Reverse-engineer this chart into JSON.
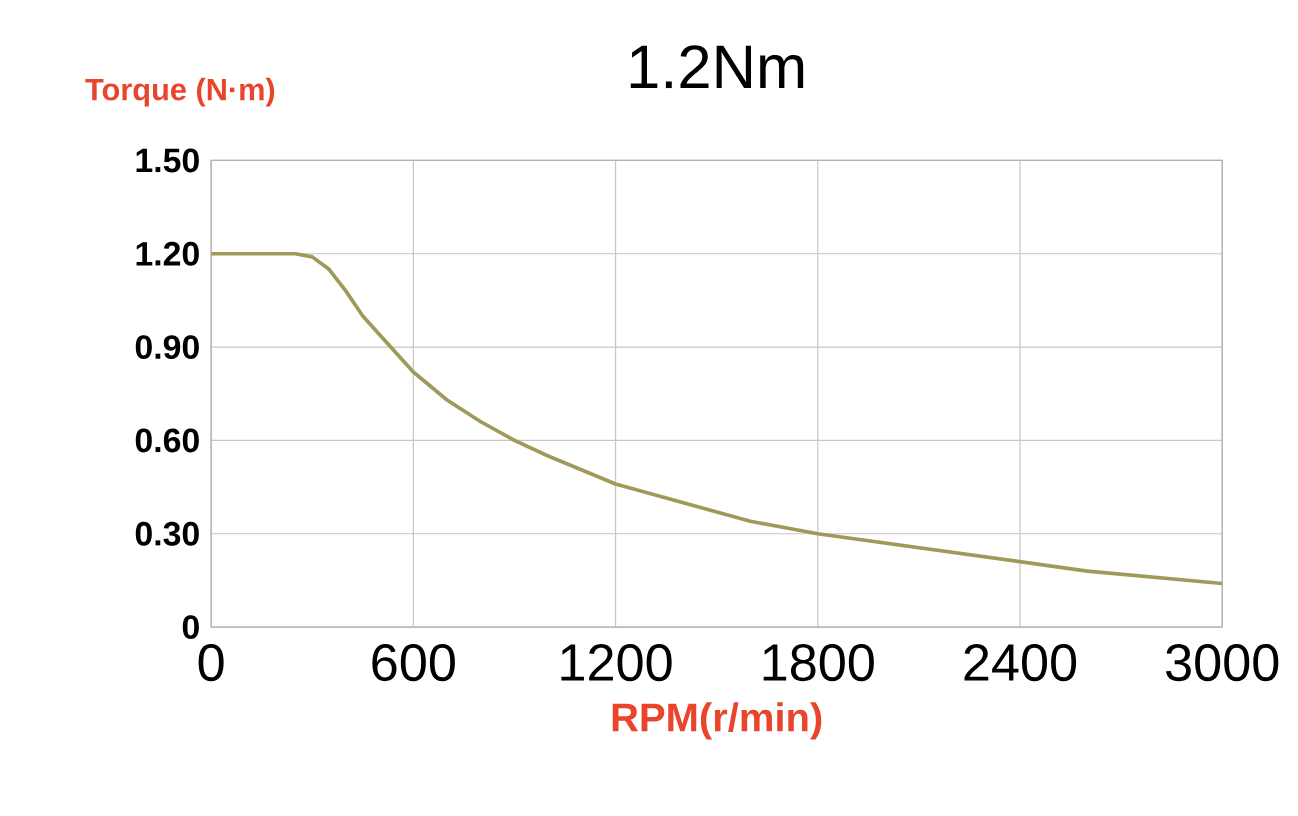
{
  "chart_data": {
    "type": "line",
    "title": "1.2Nm",
    "xlabel": "RPM(r/min)",
    "ylabel": "Torque (N·m)",
    "x": [
      0,
      250,
      300,
      350,
      400,
      450,
      500,
      600,
      700,
      800,
      900,
      1000,
      1200,
      1400,
      1600,
      1800,
      2000,
      2200,
      2400,
      2600,
      2800,
      3000
    ],
    "values": [
      1.2,
      1.2,
      1.19,
      1.15,
      1.08,
      1.0,
      0.94,
      0.82,
      0.73,
      0.66,
      0.6,
      0.55,
      0.46,
      0.4,
      0.34,
      0.3,
      0.27,
      0.24,
      0.21,
      0.18,
      0.16,
      0.14
    ],
    "color": "#a09a5a",
    "xlim": [
      0,
      3000
    ],
    "ylim": [
      0,
      1.5
    ],
    "xticks": [
      0,
      600,
      1200,
      1800,
      2400,
      3000
    ],
    "yticks": [
      0,
      {
        "value": 0.3,
        "label": "0.30"
      },
      {
        "value": 0.6,
        "label": "0.60"
      },
      {
        "value": 0.9,
        "label": "0.90"
      },
      {
        "value": 1.2,
        "label": "1.20"
      },
      {
        "value": 1.5,
        "label": "1.50"
      }
    ],
    "grid": true,
    "marker": "none",
    "line_style": "solid"
  }
}
